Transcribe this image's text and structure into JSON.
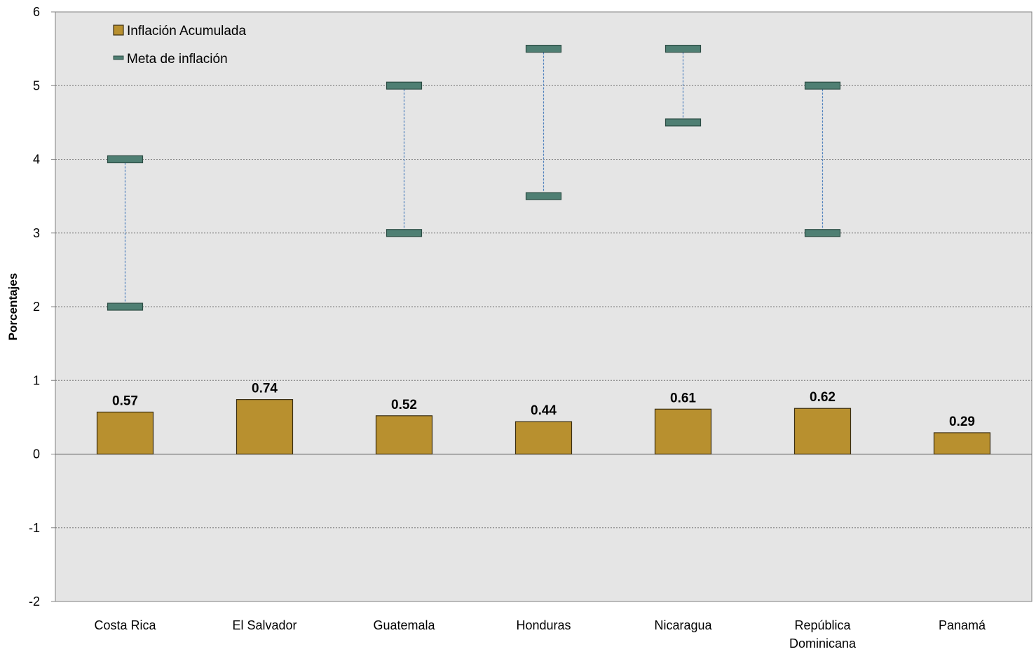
{
  "chart_data": {
    "type": "bar",
    "categories": [
      "Costa Rica",
      "El Salvador",
      "Guatemala",
      "Honduras",
      "Nicaragua",
      "República|Dominicana",
      "Panamá"
    ],
    "series": [
      {
        "name": "Inflación Acumulada",
        "type": "bar",
        "values": [
          0.57,
          0.74,
          0.52,
          0.44,
          0.61,
          0.62,
          0.29
        ],
        "labels": [
          "0.57",
          "0.74",
          "0.52",
          "0.44",
          "0.61",
          "0.62",
          "0.29"
        ]
      },
      {
        "name": "Meta de inflación",
        "type": "range",
        "ranges": [
          [
            2,
            4
          ],
          null,
          [
            3,
            5
          ],
          [
            3.5,
            5.5
          ],
          [
            4.5,
            5.5
          ],
          [
            3,
            5
          ],
          null
        ]
      }
    ],
    "title": "",
    "xlabel": "",
    "ylabel": "Porcentajes",
    "ylim": [
      -2,
      6
    ],
    "yticks": [
      -2,
      -1,
      0,
      1,
      2,
      3,
      4,
      5,
      6
    ],
    "grid": true,
    "legend": "top-left",
    "colors": {
      "bar_fill": "#b8902f",
      "bar_stroke": "#3a2e12",
      "meta_fill": "#4f7f73",
      "meta_stroke": "#2c4c44",
      "connector": "#4f81bd",
      "plot_bg": "#e5e5e5",
      "grid": "#777777"
    }
  }
}
